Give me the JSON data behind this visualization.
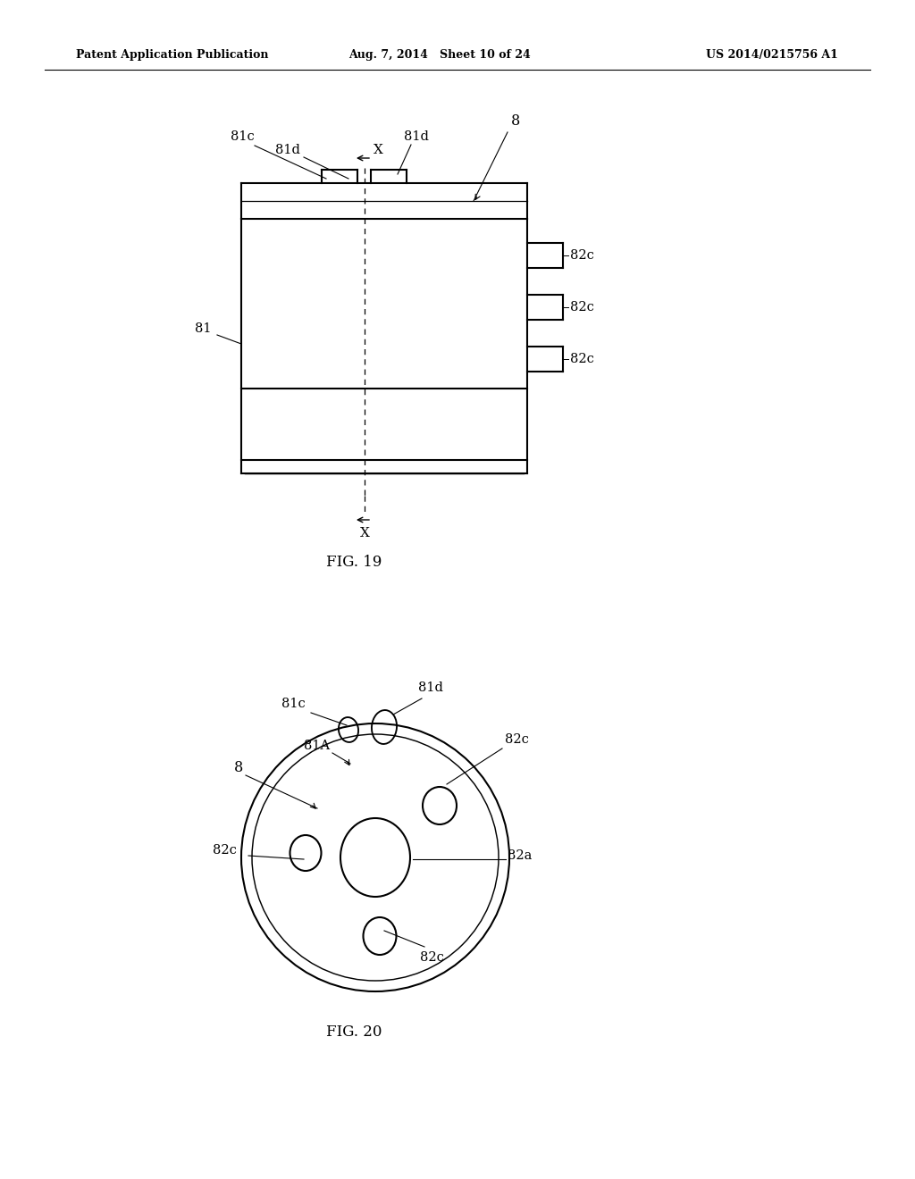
{
  "header_left": "Patent Application Publication",
  "header_mid": "Aug. 7, 2014   Sheet 10 of 24",
  "header_right": "US 2014/0215756 A1",
  "fig19_label": "FIG. 19",
  "fig20_label": "FIG. 20",
  "bg_color": "#ffffff",
  "line_color": "#000000"
}
